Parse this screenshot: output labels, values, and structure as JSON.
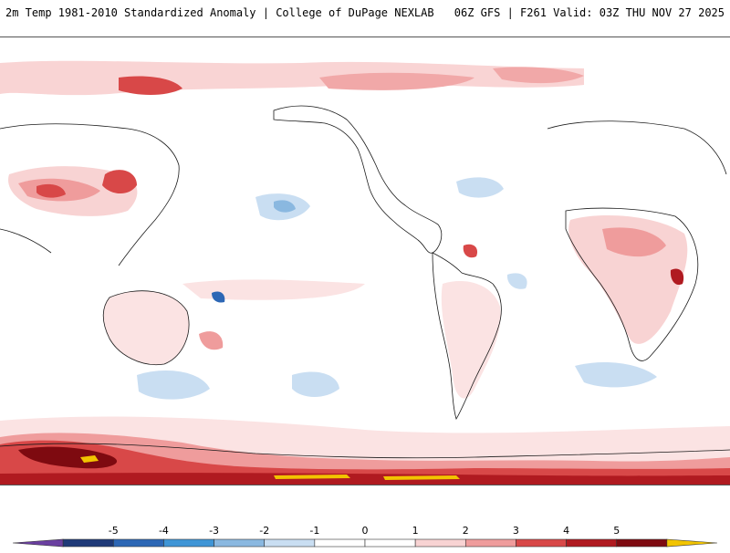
{
  "header": {
    "title": "2m Temp 1981-2010 Standardized Anomaly | College of DuPage NEXLAB",
    "run_info": "06Z GFS | F261 Valid: 03Z THU NOV 27 2025"
  },
  "map": {
    "projection": "global cylindrical (Pacific-centered)",
    "variable": "2m temperature standardized anomaly"
  },
  "colorbar": {
    "labels": [
      "-5",
      "-4",
      "-3",
      "-2",
      "-1",
      "0",
      "1",
      "2",
      "3",
      "4",
      "5"
    ],
    "colors": [
      "#6a3fa0",
      "#1f3a78",
      "#2d67b5",
      "#3f95d6",
      "#8ab8e0",
      "#c9def2",
      "#ffffff",
      "#ffffff",
      "#f8d3d3",
      "#ef9c9c",
      "#d84848",
      "#b01a20",
      "#7e0a10",
      "#f2c400"
    ]
  }
}
